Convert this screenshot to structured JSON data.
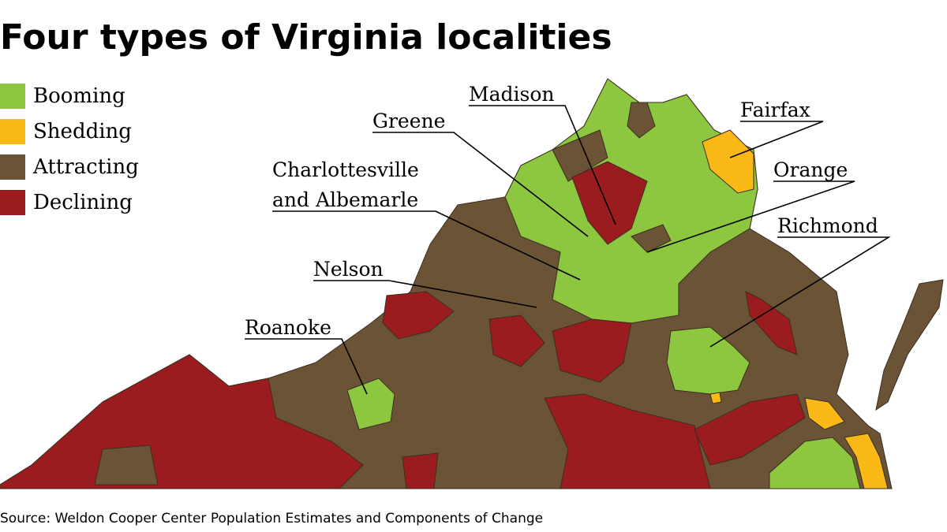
{
  "title": "Four types of Virginia localities",
  "legend": [
    {
      "label": "Booming",
      "color": "#8dc63f"
    },
    {
      "label": "Shedding",
      "color": "#fbb917"
    },
    {
      "label": "Attracting",
      "color": "#6b5436"
    },
    {
      "label": "Declining",
      "color": "#9b1c1f"
    }
  ],
  "callouts": [
    {
      "lines": [
        "Madison"
      ]
    },
    {
      "lines": [
        "Greene"
      ]
    },
    {
      "lines": [
        "Fairfax"
      ]
    },
    {
      "lines": [
        "Charlottesville",
        "and Albemarle"
      ]
    },
    {
      "lines": [
        "Orange"
      ]
    },
    {
      "lines": [
        "Richmond"
      ]
    },
    {
      "lines": [
        "Nelson"
      ]
    },
    {
      "lines": [
        "Roanoke"
      ]
    }
  ],
  "source": "Source: Weldon Cooper Center Population Estimates and Components of Change"
}
